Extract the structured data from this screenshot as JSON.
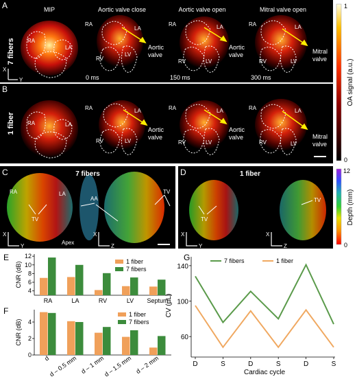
{
  "panel_letters": {
    "a": "A",
    "b": "B",
    "c": "C",
    "d": "D",
    "e": "E",
    "f": "F",
    "g": "G"
  },
  "row_labels": {
    "a": "7 fibers",
    "b": "1 fiber"
  },
  "col_titles": [
    "MIP",
    "Aortic valve close",
    "Aortic valve open",
    "Mitral valve open"
  ],
  "times": [
    "0 ms",
    "150 ms",
    "300 ms"
  ],
  "chambers": {
    "ra": "RA",
    "la": "LA",
    "rv": "RV",
    "lv": "LV",
    "aa": "AA",
    "tv": "TV",
    "apex": "Apex"
  },
  "valve_labels": {
    "aortic_line1": "Aortic",
    "aortic_line2": "valve",
    "mitral_line1": "Mitral",
    "mitral_line2": "valve"
  },
  "axes": {
    "x": "X",
    "y": "Y",
    "z": "Z"
  },
  "colorbar_oa": {
    "label": "OA signal (a.u.)",
    "max": "1",
    "min": "0"
  },
  "colorbar_depth": {
    "label": "Depth (mm)",
    "max": "12",
    "min": "0"
  },
  "panel_c_title": "7 fibers",
  "panel_d_title": "1 fiber",
  "chart_data": [
    {
      "type": "bar",
      "panel": "E",
      "ylabel": "CNR (dB)",
      "ylim": [
        3,
        12.5
      ],
      "yticks": [
        4,
        6,
        8,
        10,
        12
      ],
      "categories": [
        "RA",
        "LA",
        "RV",
        "LV",
        "Septum"
      ],
      "series": [
        {
          "name": "1 fiber",
          "color": "#f0a05a",
          "values": [
            7.0,
            7.2,
            4.2,
            5.1,
            5.0
          ]
        },
        {
          "name": "7 fibers",
          "color": "#3c8c3c",
          "values": [
            11.7,
            10.0,
            8.1,
            7.1,
            6.6
          ]
        }
      ]
    },
    {
      "type": "bar",
      "panel": "F",
      "ylabel": "CNR (dB)",
      "ylim": [
        0,
        5.5
      ],
      "yticks": [
        0,
        2,
        4
      ],
      "categories": [
        "d",
        "d – 0.5 mm",
        "d – 1 mm",
        "d – 1.5 mm",
        "d – 2 mm"
      ],
      "series": [
        {
          "name": "1 fiber",
          "color": "#f0a05a",
          "values": [
            5.2,
            4.1,
            2.7,
            2.2,
            0.9
          ]
        },
        {
          "name": "7 fibers",
          "color": "#3c8c3c",
          "values": [
            5.1,
            4.0,
            3.4,
            3.0,
            2.3
          ]
        }
      ]
    },
    {
      "type": "line",
      "panel": "G",
      "ylabel": "CV (µL)",
      "xlabel": "Cardiac cycle",
      "ylim": [
        40,
        150
      ],
      "yticks": [
        60,
        100,
        140
      ],
      "categories": [
        "D",
        "S",
        "D",
        "S",
        "D",
        "S"
      ],
      "series": [
        {
          "name": "7 fibers",
          "color": "#5a9a4a",
          "values": [
            128,
            76,
            111,
            80,
            141,
            74
          ]
        },
        {
          "name": "1 fiber",
          "color": "#f0a860",
          "values": [
            95,
            48,
            89,
            48,
            90,
            48
          ]
        }
      ]
    }
  ]
}
